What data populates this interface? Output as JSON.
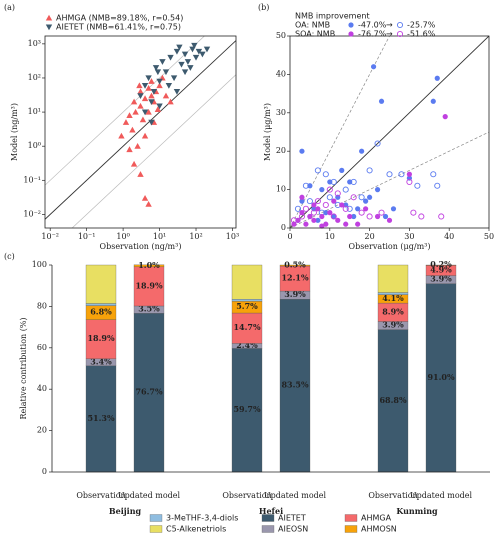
{
  "chart_data": [
    {
      "type": "scatter",
      "panel": "(a)",
      "log": true,
      "x_label": "Observation (ng/m³)",
      "y_label": "Model (ng/m³)",
      "xlim": [
        0.0072,
        1250
      ],
      "ylim": [
        0.004,
        1700
      ],
      "xticks": [
        {
          "value": 0.01,
          "label": "10⁻²"
        },
        {
          "value": 0.1,
          "label": "10⁻¹"
        },
        {
          "value": 1,
          "label": "10⁰"
        },
        {
          "value": 10,
          "label": "10¹"
        },
        {
          "value": 100,
          "label": "10²"
        },
        {
          "value": 1000,
          "label": "10³"
        }
      ],
      "yticks": [
        {
          "value": 0.01,
          "label": "10⁻²"
        },
        {
          "value": 0.1,
          "label": "10⁻¹"
        },
        {
          "value": 1,
          "label": "10⁰"
        },
        {
          "value": 10,
          "label": "10¹"
        },
        {
          "value": 100,
          "label": "10²"
        },
        {
          "value": 1000,
          "label": "10³"
        }
      ],
      "legend": "upper left",
      "series": [
        {
          "name": "AHMGA (NMB=89.18%,  r=0.54)",
          "color": "#f05a5a",
          "marker": "triangle-up",
          "filled": true,
          "x": [
            0.9,
            1.2,
            1.5,
            1.8,
            2,
            2.2,
            2.5,
            3,
            3,
            3.5,
            4,
            4,
            5,
            5,
            6,
            6,
            7,
            8,
            9,
            10,
            12,
            15,
            2,
            3,
            5,
            4,
            1.5,
            2.8,
            7,
            20
          ],
          "values": [
            2,
            5,
            8,
            3,
            20,
            10,
            1,
            15,
            40,
            6,
            25,
            2,
            50,
            10,
            30,
            80,
            20,
            40,
            12,
            60,
            100,
            30,
            0.3,
            0.15,
            0.02,
            0.03,
            0.8,
            60,
            5,
            20
          ]
        },
        {
          "name": "AIETET (NMB=61.41%, r=0.75)",
          "color": "#3d5a6e",
          "marker": "triangle-down",
          "filled": true,
          "x": [
            3,
            4,
            5,
            6,
            8,
            10,
            12,
            15,
            20,
            25,
            30,
            40,
            50,
            60,
            80,
            100,
            120,
            150,
            200,
            4,
            7,
            10,
            18,
            30,
            50,
            70,
            9,
            35,
            90,
            6
          ],
          "values": [
            30,
            60,
            100,
            20,
            200,
            80,
            300,
            150,
            400,
            100,
            600,
            250,
            500,
            300,
            700,
            400,
            600,
            500,
            700,
            10,
            40,
            15,
            60,
            40,
            150,
            200,
            150,
            800,
            900,
            5
          ]
        }
      ]
    },
    {
      "type": "scatter",
      "panel": "(b)",
      "log": false,
      "x_label": "Observation (μg/m³)",
      "y_label": "Model (μg/m³)",
      "xlim": [
        0,
        50
      ],
      "ylim": [
        0,
        50
      ],
      "xticks": [
        0,
        10,
        20,
        30,
        40,
        50
      ],
      "yticks": [
        0,
        10,
        20,
        30,
        40,
        50
      ],
      "legend_box": {
        "title": "NMB improvement",
        "arrow": "→",
        "rows": [
          {
            "label": "OA: NMB",
            "from": "-47.0%",
            "to": "-25.7%"
          },
          {
            "label": "SOA: NMB",
            "from": "-76.7%",
            "to": "-51.6%"
          }
        ]
      },
      "series": [
        {
          "color": "#5b7bf0",
          "marker": "circle",
          "filled": true,
          "x": [
            2,
            3,
            5,
            6,
            8,
            9,
            10,
            12,
            14,
            15,
            16,
            18,
            20,
            21,
            22,
            23,
            24,
            26,
            30,
            36,
            37,
            3,
            7,
            11,
            13,
            17,
            19,
            5
          ],
          "values": [
            2,
            20,
            3,
            5,
            10,
            4,
            12,
            8,
            6,
            12,
            3,
            20,
            8,
            42,
            10,
            33,
            3,
            5,
            13,
            33,
            39,
            7,
            2,
            3,
            15,
            5,
            7,
            11
          ]
        },
        {
          "color": "#5b7bf0",
          "marker": "circle",
          "filled": false,
          "x": [
            2,
            4,
            5,
            7,
            9,
            10,
            12,
            14,
            16,
            18,
            20,
            22,
            25,
            28,
            32,
            36,
            37,
            15,
            8,
            11
          ],
          "values": [
            5,
            11,
            7,
            15,
            14,
            8,
            6,
            10,
            12,
            8,
            15,
            22,
            14,
            14,
            11,
            14,
            11,
            5,
            4,
            12
          ]
        },
        {
          "color": "#c040e0",
          "marker": "circle",
          "filled": true,
          "x": [
            1,
            2,
            3,
            4,
            5,
            6,
            7,
            8,
            9,
            10,
            12,
            13,
            15,
            17,
            19,
            22,
            25,
            30,
            39,
            3,
            6,
            11,
            8,
            14
          ],
          "values": [
            1,
            2,
            4,
            1,
            3,
            2,
            5,
            3,
            1,
            4,
            2,
            6,
            3,
            1,
            5,
            3,
            2,
            14,
            29,
            8,
            6,
            7,
            0.5,
            1
          ]
        },
        {
          "color": "#c040e0",
          "marker": "circle",
          "filled": false,
          "x": [
            1,
            3,
            4,
            6,
            7,
            9,
            11,
            12,
            14,
            16,
            18,
            20,
            23,
            30,
            33,
            38,
            31,
            10
          ],
          "values": [
            2,
            3,
            5,
            4,
            7,
            6,
            3,
            9,
            5,
            8,
            4,
            3,
            4,
            12,
            3,
            3,
            4,
            10
          ]
        }
      ]
    },
    {
      "type": "bar",
      "stacked": true,
      "panel": "(c)",
      "y_label": "Relative contribution (%)",
      "categories": [
        "Observation",
        "Updated model",
        "Observation",
        "Updated model",
        "Observation",
        "Updated model"
      ],
      "groups": [
        "Beijing",
        "Hefei",
        "Kunming"
      ],
      "ylim": [
        0,
        100
      ],
      "yticks": [
        0,
        20,
        40,
        60,
        80,
        100
      ],
      "series": [
        {
          "name": "AIETET",
          "color": "#3d5a6e",
          "values": [
            51.3,
            76.7,
            59.7,
            83.5,
            68.8,
            91.0
          ],
          "value_labels": [
            "51.3%",
            "76.7%",
            "59.7%",
            "83.5%",
            "68.8%",
            "91.0%"
          ]
        },
        {
          "name": "AIEOSN",
          "color": "#9a97ad",
          "values": [
            3.4,
            3.5,
            2.4,
            3.9,
            3.9,
            3.9
          ],
          "value_labels": [
            "3.4%",
            "3.5%",
            "2.4%",
            "3.9%",
            "3.9%",
            "3.9%"
          ]
        },
        {
          "name": "AHMGA",
          "color": "#f46a6b",
          "values": [
            18.9,
            18.9,
            14.7,
            12.1,
            8.9,
            4.9
          ],
          "value_labels": [
            "18.9%",
            "18.9%",
            "14.7%",
            "12.1%",
            "8.9%",
            "4.9%"
          ]
        },
        {
          "name": "AHMOSN",
          "color": "#f7a20a",
          "values": [
            6.8,
            1.0,
            5.7,
            0.5,
            4.1,
            0.2
          ],
          "value_labels": [
            "6.8%",
            "1.0%",
            "5.7%",
            "0.5%",
            "4.1%",
            "0.2%"
          ]
        },
        {
          "name": "3-MeTHF-3,4-diols",
          "color": "#8fbde0",
          "values": [
            1.0,
            0,
            1.0,
            0,
            1.0,
            0
          ],
          "value_labels": [
            null,
            null,
            null,
            null,
            null,
            null
          ]
        },
        {
          "name": "C5-Alkenetriols",
          "color": "#e8df62",
          "values": [
            18.6,
            0,
            16.5,
            0,
            13.3,
            0
          ],
          "value_labels": [
            null,
            null,
            null,
            null,
            null,
            null
          ]
        }
      ]
    }
  ]
}
